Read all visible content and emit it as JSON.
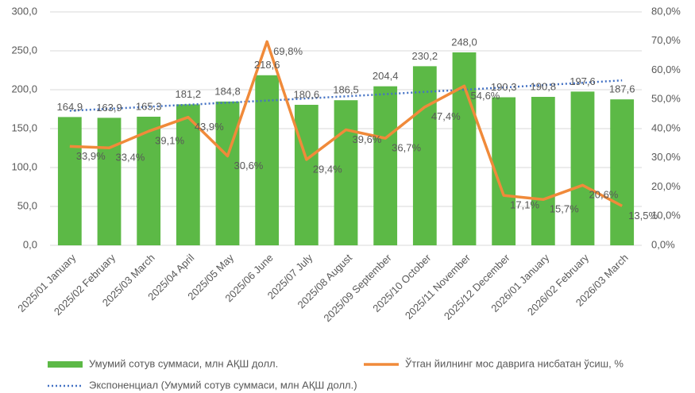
{
  "chart_data": {
    "type": "bar_line",
    "categories": [
      "2025/01 January",
      "2025/02 February",
      "2025/03 March",
      "2025/04 April",
      "2025/05 May",
      "2025/06 June",
      "2025/07 July",
      "2025/08 August",
      "2025/09 September",
      "2025/10 October",
      "2025/11 November",
      "2025/12 December",
      "2026/01 January",
      "2026/02 February",
      "2026/03 March"
    ],
    "series": [
      {
        "name": "Умумий сотув суммаси, млн АҚШ долл.",
        "type": "bar",
        "color": "#5cb946",
        "values": [
          164.9,
          163.9,
          165.3,
          181.2,
          184.8,
          218.6,
          180.6,
          186.5,
          204.4,
          230.2,
          248.0,
          190.3,
          190.8,
          197.6,
          187.6
        ],
        "value_labels": [
          "164,9",
          "163,9",
          "165,3",
          "181,2",
          "184,8",
          "218,6",
          "180,6",
          "186,5",
          "204,4",
          "230,2",
          "248,0",
          "190,3",
          "190,8",
          "197,6",
          "187,6"
        ]
      },
      {
        "name": "Ўтган йилнинг мос даврига нисбатан ўсиш, %",
        "type": "line",
        "axis": "y2",
        "color": "#f08a3a",
        "values": [
          33.9,
          33.4,
          39.1,
          43.9,
          30.6,
          69.8,
          29.4,
          39.6,
          36.7,
          47.4,
          54.6,
          17.1,
          15.7,
          20.6,
          13.5
        ],
        "value_labels": [
          "33,9%",
          "33,4%",
          "39,1%",
          "43,9%",
          "30,6%",
          "69,8%",
          "29,4%",
          "39,6%",
          "36,7%",
          "47,4%",
          "54,6%",
          "17,1%",
          "15,7%",
          "20,6%",
          "13,5%"
        ]
      },
      {
        "name": "Экспоненциал (Умумий сотув суммаси, млн АҚШ долл.)",
        "type": "trend",
        "color": "#4472c4",
        "values": [
          173.0,
          175.5,
          178.1,
          180.7,
          183.4,
          186.0,
          188.8,
          191.5,
          194.3,
          197.2,
          200.0,
          202.9,
          205.9,
          208.9,
          212.0
        ]
      }
    ],
    "ylim": [
      0,
      300
    ],
    "yticks": [
      {
        "value": 0,
        "label": "0,0"
      },
      {
        "value": 50,
        "label": "50,0"
      },
      {
        "value": 100,
        "label": "100,0"
      },
      {
        "value": 150,
        "label": "150,0"
      },
      {
        "value": 200,
        "label": "200,0"
      },
      {
        "value": 250,
        "label": "250,0"
      },
      {
        "value": 300,
        "label": "300,0"
      }
    ],
    "y2lim": [
      0,
      80
    ],
    "y2ticks": [
      {
        "value": 0,
        "label": "0,0%"
      },
      {
        "value": 10,
        "label": "10,0%"
      },
      {
        "value": 20,
        "label": "20,0%"
      },
      {
        "value": 30,
        "label": "30,0%"
      },
      {
        "value": 40,
        "label": "40,0%"
      },
      {
        "value": 50,
        "label": "50,0%"
      },
      {
        "value": 60,
        "label": "60,0%"
      },
      {
        "value": 70,
        "label": "70,0%"
      },
      {
        "value": 80,
        "label": "80,0%"
      }
    ],
    "grid": true
  }
}
